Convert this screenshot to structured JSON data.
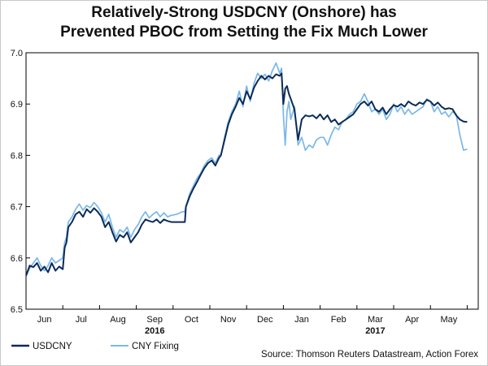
{
  "chart_data": {
    "type": "line",
    "title": "Relatively-Strong USDCNY (Onshore) has Prevented PBOC from Setting the Fix Much Lower",
    "title_lines": [
      "Relatively-Strong USDCNY (Onshore) has",
      "Prevented PBOC from Setting the Fix Much Lower"
    ],
    "source": "Source: Thomson Reuters Datastream, Action Forex",
    "ylim": [
      6.5,
      7.0
    ],
    "yticks": [
      "7.0",
      "6.9",
      "6.8",
      "6.7",
      "6.6",
      "6.5"
    ],
    "ytick_values": [
      7.0,
      6.9,
      6.8,
      6.7,
      6.6,
      6.5
    ],
    "xlim": [
      0,
      12.3
    ],
    "months": [
      "Jun",
      "Jul",
      "Aug",
      "Sep",
      "Oct",
      "Nov",
      "Dec",
      "Jan",
      "Feb",
      "Mar",
      "Apr",
      "May"
    ],
    "years": [
      {
        "label": "2016",
        "at": 3.5
      },
      {
        "label": "2017",
        "at": 9.5
      }
    ],
    "legend_position": "bottom-left",
    "grid": false,
    "series": [
      {
        "name": "USDCNY",
        "color": "#0d2b59",
        "points": [
          [
            0.0,
            6.565
          ],
          [
            0.1,
            6.585
          ],
          [
            0.2,
            6.582
          ],
          [
            0.3,
            6.59
          ],
          [
            0.4,
            6.575
          ],
          [
            0.5,
            6.583
          ],
          [
            0.6,
            6.572
          ],
          [
            0.7,
            6.59
          ],
          [
            0.8,
            6.575
          ],
          [
            0.9,
            6.583
          ],
          [
            1.0,
            6.578
          ],
          [
            1.05,
            6.62
          ],
          [
            1.1,
            6.63
          ],
          [
            1.15,
            6.66
          ],
          [
            1.25,
            6.67
          ],
          [
            1.35,
            6.685
          ],
          [
            1.45,
            6.69
          ],
          [
            1.55,
            6.68
          ],
          [
            1.65,
            6.695
          ],
          [
            1.75,
            6.688
          ],
          [
            1.85,
            6.697
          ],
          [
            1.95,
            6.69
          ],
          [
            2.05,
            6.68
          ],
          [
            2.15,
            6.66
          ],
          [
            2.25,
            6.67
          ],
          [
            2.35,
            6.65
          ],
          [
            2.45,
            6.632
          ],
          [
            2.55,
            6.645
          ],
          [
            2.65,
            6.64
          ],
          [
            2.75,
            6.65
          ],
          [
            2.85,
            6.63
          ],
          [
            2.95,
            6.64
          ],
          [
            3.05,
            6.65
          ],
          [
            3.15,
            6.665
          ],
          [
            3.25,
            6.675
          ],
          [
            3.35,
            6.672
          ],
          [
            3.45,
            6.67
          ],
          [
            3.55,
            6.675
          ],
          [
            3.65,
            6.668
          ],
          [
            3.75,
            6.675
          ],
          [
            3.85,
            6.672
          ],
          [
            3.95,
            6.67
          ],
          [
            4.1,
            6.67
          ],
          [
            4.25,
            6.67
          ],
          [
            4.32,
            6.67
          ],
          [
            4.35,
            6.7
          ],
          [
            4.45,
            6.72
          ],
          [
            4.55,
            6.735
          ],
          [
            4.65,
            6.748
          ],
          [
            4.75,
            6.762
          ],
          [
            4.85,
            6.775
          ],
          [
            4.95,
            6.785
          ],
          [
            5.05,
            6.79
          ],
          [
            5.15,
            6.78
          ],
          [
            5.25,
            6.795
          ],
          [
            5.3,
            6.8
          ],
          [
            5.4,
            6.83
          ],
          [
            5.5,
            6.86
          ],
          [
            5.6,
            6.88
          ],
          [
            5.7,
            6.895
          ],
          [
            5.8,
            6.912
          ],
          [
            5.9,
            6.9
          ],
          [
            6.0,
            6.925
          ],
          [
            6.1,
            6.91
          ],
          [
            6.2,
            6.932
          ],
          [
            6.3,
            6.945
          ],
          [
            6.4,
            6.955
          ],
          [
            6.5,
            6.948
          ],
          [
            6.6,
            6.955
          ],
          [
            6.7,
            6.95
          ],
          [
            6.8,
            6.958
          ],
          [
            6.9,
            6.955
          ],
          [
            6.95,
            6.96
          ],
          [
            7.0,
            6.9
          ],
          [
            7.05,
            6.93
          ],
          [
            7.1,
            6.935
          ],
          [
            7.15,
            6.92
          ],
          [
            7.2,
            6.91
          ],
          [
            7.3,
            6.89
          ],
          [
            7.4,
            6.83
          ],
          [
            7.5,
            6.87
          ],
          [
            7.6,
            6.878
          ],
          [
            7.7,
            6.876
          ],
          [
            7.8,
            6.878
          ],
          [
            7.9,
            6.872
          ],
          [
            8.0,
            6.88
          ],
          [
            8.1,
            6.87
          ],
          [
            8.2,
            6.878
          ],
          [
            8.3,
            6.865
          ],
          [
            8.4,
            6.87
          ],
          [
            8.5,
            6.86
          ],
          [
            8.6,
            6.865
          ],
          [
            8.7,
            6.87
          ],
          [
            8.8,
            6.875
          ],
          [
            8.9,
            6.88
          ],
          [
            9.0,
            6.89
          ],
          [
            9.1,
            6.9
          ],
          [
            9.2,
            6.905
          ],
          [
            9.3,
            6.897
          ],
          [
            9.4,
            6.905
          ],
          [
            9.5,
            6.89
          ],
          [
            9.6,
            6.885
          ],
          [
            9.7,
            6.893
          ],
          [
            9.8,
            6.88
          ],
          [
            9.9,
            6.89
          ],
          [
            10.0,
            6.898
          ],
          [
            10.1,
            6.895
          ],
          [
            10.2,
            6.9
          ],
          [
            10.3,
            6.895
          ],
          [
            10.4,
            6.905
          ],
          [
            10.5,
            6.9
          ],
          [
            10.6,
            6.897
          ],
          [
            10.7,
            6.903
          ],
          [
            10.8,
            6.9
          ],
          [
            10.9,
            6.908
          ],
          [
            11.0,
            6.905
          ],
          [
            11.1,
            6.897
          ],
          [
            11.2,
            6.903
          ],
          [
            11.3,
            6.895
          ],
          [
            11.4,
            6.89
          ],
          [
            11.5,
            6.892
          ],
          [
            11.6,
            6.89
          ],
          [
            11.7,
            6.878
          ],
          [
            11.8,
            6.87
          ],
          [
            11.9,
            6.866
          ],
          [
            12.0,
            6.865
          ]
        ]
      },
      {
        "name": "CNY Fixing",
        "color": "#7ab8e8",
        "points": [
          [
            0.0,
            6.565
          ],
          [
            0.1,
            6.58
          ],
          [
            0.2,
            6.59
          ],
          [
            0.3,
            6.6
          ],
          [
            0.4,
            6.585
          ],
          [
            0.5,
            6.575
          ],
          [
            0.6,
            6.585
          ],
          [
            0.7,
            6.6
          ],
          [
            0.8,
            6.59
          ],
          [
            0.9,
            6.595
          ],
          [
            1.0,
            6.6
          ],
          [
            1.05,
            6.63
          ],
          [
            1.1,
            6.64
          ],
          [
            1.15,
            6.67
          ],
          [
            1.25,
            6.68
          ],
          [
            1.35,
            6.695
          ],
          [
            1.45,
            6.705
          ],
          [
            1.55,
            6.693
          ],
          [
            1.65,
            6.702
          ],
          [
            1.75,
            6.698
          ],
          [
            1.85,
            6.708
          ],
          [
            1.95,
            6.7
          ],
          [
            2.05,
            6.688
          ],
          [
            2.15,
            6.67
          ],
          [
            2.25,
            6.685
          ],
          [
            2.35,
            6.66
          ],
          [
            2.45,
            6.64
          ],
          [
            2.55,
            6.655
          ],
          [
            2.65,
            6.65
          ],
          [
            2.75,
            6.66
          ],
          [
            2.85,
            6.64
          ],
          [
            2.95,
            6.655
          ],
          [
            3.05,
            6.665
          ],
          [
            3.15,
            6.68
          ],
          [
            3.25,
            6.69
          ],
          [
            3.35,
            6.678
          ],
          [
            3.45,
            6.685
          ],
          [
            3.55,
            6.69
          ],
          [
            3.65,
            6.68
          ],
          [
            3.75,
            6.688
          ],
          [
            3.85,
            6.68
          ],
          [
            3.95,
            6.683
          ],
          [
            4.1,
            6.685
          ],
          [
            4.25,
            6.69
          ],
          [
            4.32,
            6.69
          ],
          [
            4.35,
            6.7
          ],
          [
            4.45,
            6.725
          ],
          [
            4.55,
            6.74
          ],
          [
            4.65,
            6.755
          ],
          [
            4.75,
            6.765
          ],
          [
            4.85,
            6.78
          ],
          [
            4.95,
            6.79
          ],
          [
            5.05,
            6.795
          ],
          [
            5.15,
            6.785
          ],
          [
            5.25,
            6.8
          ],
          [
            5.3,
            6.8
          ],
          [
            5.4,
            6.835
          ],
          [
            5.5,
            6.865
          ],
          [
            5.6,
            6.885
          ],
          [
            5.7,
            6.9
          ],
          [
            5.8,
            6.925
          ],
          [
            5.9,
            6.895
          ],
          [
            6.0,
            6.935
          ],
          [
            6.1,
            6.905
          ],
          [
            6.2,
            6.94
          ],
          [
            6.3,
            6.96
          ],
          [
            6.4,
            6.95
          ],
          [
            6.5,
            6.958
          ],
          [
            6.6,
            6.945
          ],
          [
            6.7,
            6.965
          ],
          [
            6.8,
            6.98
          ],
          [
            6.9,
            6.96
          ],
          [
            6.95,
            6.97
          ],
          [
            7.0,
            6.88
          ],
          [
            7.05,
            6.82
          ],
          [
            7.1,
            6.885
          ],
          [
            7.15,
            6.905
          ],
          [
            7.2,
            6.87
          ],
          [
            7.3,
            6.895
          ],
          [
            7.4,
            6.82
          ],
          [
            7.5,
            6.835
          ],
          [
            7.6,
            6.81
          ],
          [
            7.7,
            6.82
          ],
          [
            7.8,
            6.815
          ],
          [
            7.9,
            6.83
          ],
          [
            8.0,
            6.835
          ],
          [
            8.1,
            6.835
          ],
          [
            8.2,
            6.82
          ],
          [
            8.3,
            6.84
          ],
          [
            8.4,
            6.855
          ],
          [
            8.5,
            6.85
          ],
          [
            8.6,
            6.865
          ],
          [
            8.7,
            6.87
          ],
          [
            8.8,
            6.88
          ],
          [
            8.9,
            6.885
          ],
          [
            9.0,
            6.9
          ],
          [
            9.1,
            6.905
          ],
          [
            9.2,
            6.92
          ],
          [
            9.3,
            6.905
          ],
          [
            9.4,
            6.885
          ],
          [
            9.5,
            6.89
          ],
          [
            9.6,
            6.88
          ],
          [
            9.7,
            6.89
          ],
          [
            9.8,
            6.87
          ],
          [
            9.9,
            6.88
          ],
          [
            10.0,
            6.9
          ],
          [
            10.1,
            6.885
          ],
          [
            10.2,
            6.895
          ],
          [
            10.3,
            6.88
          ],
          [
            10.4,
            6.89
          ],
          [
            10.5,
            6.88
          ],
          [
            10.6,
            6.885
          ],
          [
            10.7,
            6.89
          ],
          [
            10.8,
            6.895
          ],
          [
            10.9,
            6.91
          ],
          [
            11.0,
            6.905
          ],
          [
            11.1,
            6.885
          ],
          [
            11.2,
            6.895
          ],
          [
            11.3,
            6.88
          ],
          [
            11.4,
            6.885
          ],
          [
            11.5,
            6.875
          ],
          [
            11.6,
            6.885
          ],
          [
            11.7,
            6.88
          ],
          [
            11.8,
            6.84
          ],
          [
            11.9,
            6.81
          ],
          [
            12.0,
            6.812
          ]
        ]
      }
    ]
  }
}
